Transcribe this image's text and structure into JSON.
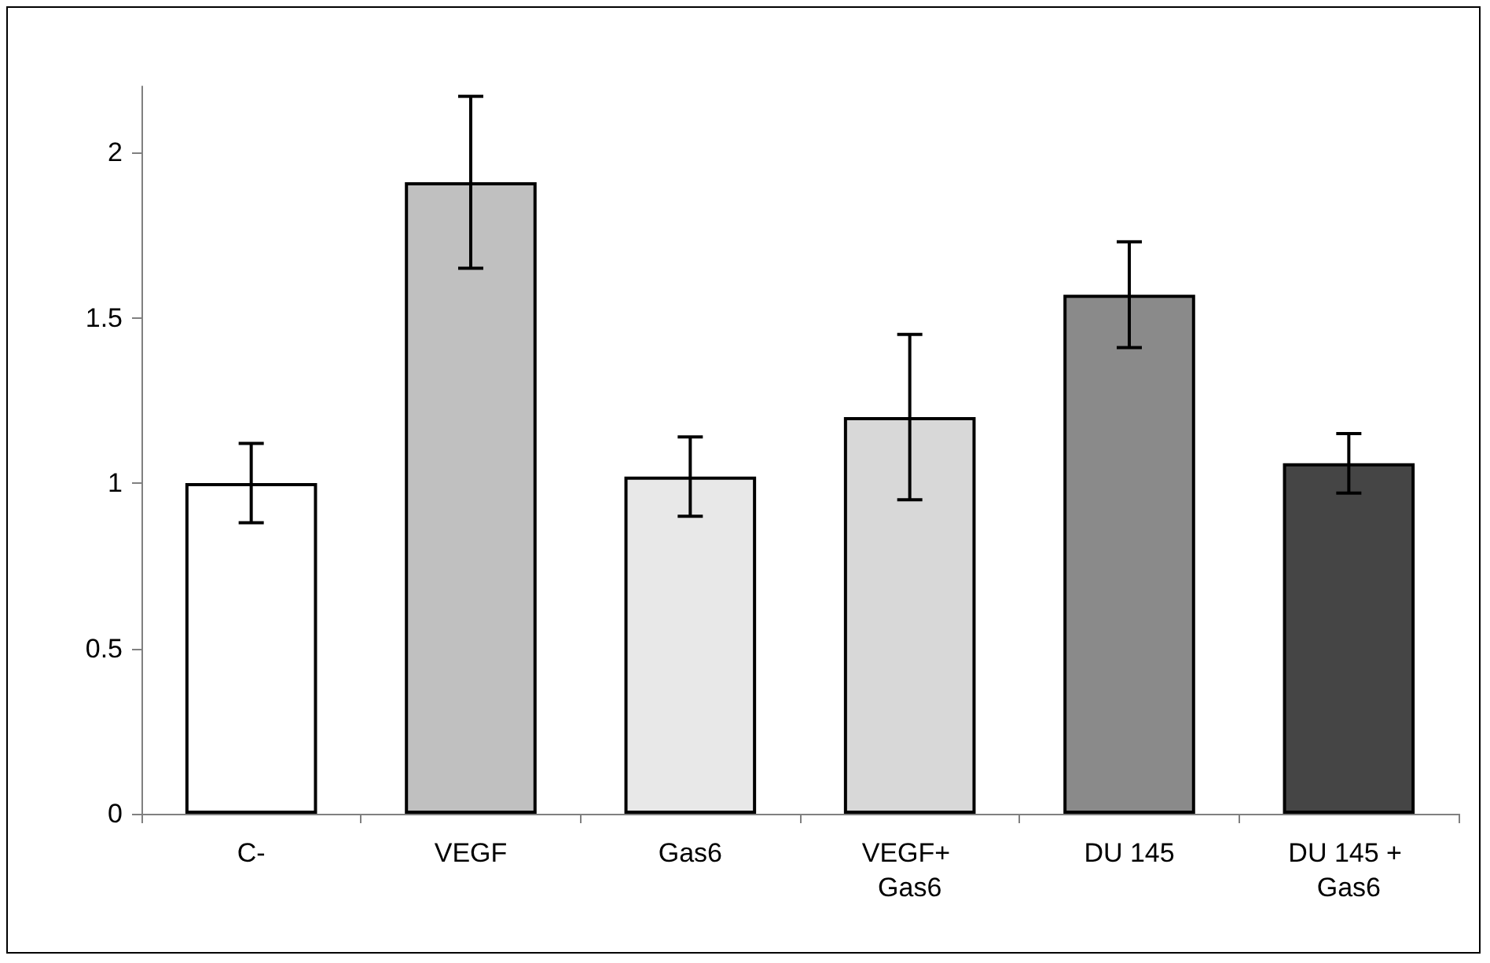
{
  "chart_data": {
    "type": "bar",
    "categories": [
      "C-",
      "VEGF",
      "Gas6",
      "VEGF+ Gas6",
      "DU 145",
      "DU 145 + Gas6"
    ],
    "values": [
      1.0,
      1.91,
      1.02,
      1.2,
      1.57,
      1.06
    ],
    "errors": [
      0.12,
      0.26,
      0.12,
      0.25,
      0.16,
      0.09
    ],
    "colors": [
      "#ffffff",
      "#c0c0c0",
      "#e8e8e8",
      "#d8d8d8",
      "#8a8a8a",
      "#454545"
    ],
    "ylim": [
      0,
      2.2
    ],
    "yticks": [
      0,
      0.5,
      1,
      1.5,
      2
    ],
    "grid": false
  }
}
